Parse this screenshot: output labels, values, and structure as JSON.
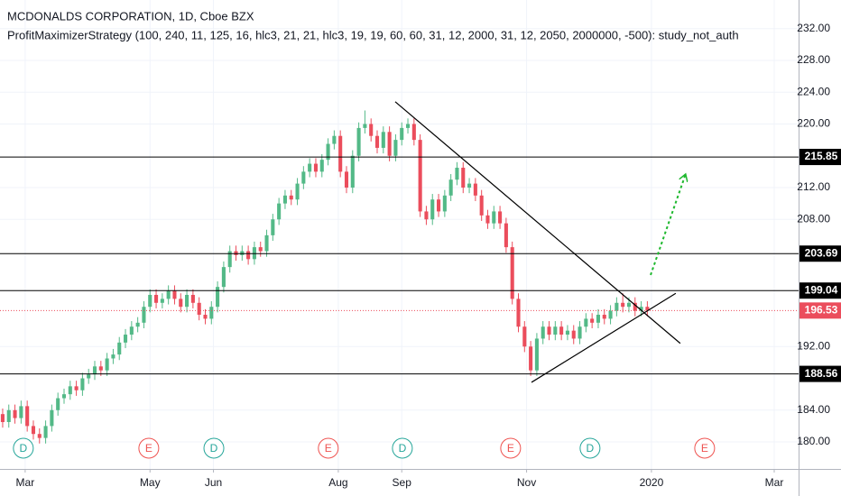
{
  "chart_data": {
    "type": "candlestick",
    "title": "MCDONALDS CORPORATION, 1D, Cboe BZX",
    "subtitle": "ProfitMaximizerStrategy (100, 240, 11, 125, 16, hlc3, 21, 21, hlc3, 19, 19, 60, 60, 31, 12, 2000, 31, 12, 2050, 2000000, -500): study_not_auth",
    "up_color": "#53b987",
    "down_color": "#eb4d5c",
    "xlim": [
      46.7,
      436.9
    ],
    "ylim": [
      176.6,
      235.6
    ],
    "grid": true,
    "xticks": [
      {
        "value": 59,
        "label": "Mar"
      },
      {
        "value": 120,
        "label": "May"
      },
      {
        "value": 151,
        "label": "Jun"
      },
      {
        "value": 212,
        "label": "Aug"
      },
      {
        "value": 243,
        "label": "Sep"
      },
      {
        "value": 304,
        "label": "Nov"
      },
      {
        "value": 365,
        "label": "2020"
      },
      {
        "value": 425,
        "label": "Mar"
      }
    ],
    "yticks": [
      {
        "value": 180,
        "label": "180.00"
      },
      {
        "value": 184,
        "label": "184.00"
      },
      {
        "value": 192,
        "label": "192.00"
      },
      {
        "value": 208,
        "label": "208.00"
      },
      {
        "value": 212,
        "label": "212.00"
      },
      {
        "value": 220,
        "label": "220.00"
      },
      {
        "value": 224,
        "label": "224.00"
      },
      {
        "value": 228,
        "label": "228.00"
      },
      {
        "value": 232,
        "label": "232.00"
      }
    ],
    "x": [
      48,
      51,
      54,
      57,
      60,
      63,
      66,
      69,
      72,
      75,
      78,
      81,
      84,
      87,
      90,
      93,
      96,
      99,
      102,
      105,
      108,
      111,
      114,
      117,
      120,
      123,
      126,
      129,
      132,
      135,
      138,
      141,
      144,
      147,
      150,
      153,
      156,
      159,
      162,
      165,
      168,
      171,
      174,
      177,
      180,
      183,
      186,
      189,
      192,
      195,
      198,
      201,
      204,
      207,
      210,
      213,
      216,
      219,
      222,
      225,
      228,
      231,
      234,
      237,
      240,
      243,
      246,
      249,
      252,
      255,
      258,
      261,
      264,
      267,
      270,
      273,
      276,
      279,
      282,
      285,
      288,
      291,
      294,
      297,
      300,
      303,
      306,
      309,
      312,
      315,
      318,
      321,
      324,
      327,
      330,
      333,
      336,
      339,
      342,
      345,
      348,
      351,
      354,
      357,
      360,
      363
    ],
    "opens": [
      183.5,
      182.5,
      184,
      183,
      184.5,
      182,
      181,
      180.5,
      182,
      184,
      185.5,
      186,
      187,
      186.5,
      188,
      188.5,
      189.5,
      189,
      190.5,
      191,
      192.5,
      193.5,
      194.5,
      195,
      197,
      198.5,
      197.5,
      198,
      199,
      198,
      197,
      198.5,
      197.5,
      196,
      195.5,
      197,
      199.5,
      202,
      204,
      203.5,
      204,
      203,
      204.5,
      204,
      206,
      208,
      210,
      211,
      210.5,
      212.5,
      214,
      215,
      214,
      215.5,
      217.5,
      218.5,
      214,
      212,
      216,
      219.5,
      220,
      218.5,
      217,
      219,
      216,
      218,
      219.5,
      220,
      218,
      209,
      208,
      210.5,
      209,
      211,
      213,
      214.5,
      212,
      212.5,
      211,
      208.5,
      207.5,
      209,
      207.5,
      204.5,
      198,
      194.5,
      192,
      189,
      193,
      194.5,
      193.5,
      194.5,
      193.5,
      194,
      193,
      194.5,
      195.5,
      195,
      196,
      195.5,
      196.5,
      197.5,
      197,
      197.5,
      196.5,
      197
    ],
    "highs": [
      184.2,
      184.7,
      184.7,
      185.2,
      185.2,
      182.7,
      181.7,
      182.7,
      184.7,
      186.2,
      186.7,
      187.7,
      187.7,
      188.7,
      189.2,
      190.2,
      190.2,
      191.2,
      191.7,
      193.2,
      194.2,
      195.2,
      195.7,
      197.7,
      199.2,
      199.2,
      198.7,
      199.7,
      199.7,
      198.7,
      199.2,
      199.2,
      198.2,
      196.7,
      197.7,
      200.2,
      202.7,
      204.7,
      204.7,
      204.7,
      204.7,
      205.2,
      205.2,
      206.7,
      208.7,
      210.7,
      211.7,
      211.7,
      213.2,
      214.7,
      215.7,
      215.7,
      216.2,
      218.2,
      219.2,
      219.2,
      214.7,
      216.7,
      220.2,
      221.7,
      220.7,
      219.2,
      219.7,
      219.7,
      218.7,
      220.2,
      220.7,
      220.7,
      218.7,
      209.7,
      211.2,
      211.2,
      211.7,
      213.7,
      215.2,
      215.2,
      213.2,
      213.2,
      211.7,
      209.2,
      209.7,
      209.7,
      208.2,
      205.2,
      198.7,
      195.2,
      192.7,
      193.7,
      195.2,
      195.2,
      195.2,
      195.2,
      194.7,
      194.7,
      195.2,
      196.2,
      196.2,
      196.7,
      196.7,
      197.2,
      198.2,
      198.7,
      198.2,
      198.2,
      197.7,
      197.7
    ],
    "lows": [
      181.8,
      181.8,
      182.3,
      182.3,
      181.3,
      180.3,
      179.8,
      179.8,
      181.3,
      183.3,
      184.8,
      185.3,
      185.8,
      185.8,
      187.3,
      187.8,
      188.3,
      188.3,
      189.8,
      190.3,
      191.8,
      192.8,
      193.8,
      194.3,
      196.3,
      196.8,
      196.8,
      197.3,
      197.3,
      196.3,
      196.3,
      196.8,
      195.3,
      194.8,
      194.8,
      196.3,
      198.8,
      201.3,
      202.8,
      202.8,
      202.3,
      202.3,
      203.3,
      203.3,
      205.3,
      207.3,
      209.3,
      209.8,
      209.8,
      211.8,
      213.3,
      213.3,
      213.3,
      214.8,
      216.8,
      213.3,
      211.3,
      211.3,
      215.3,
      218.8,
      217.8,
      216.3,
      216.3,
      215.3,
      215.3,
      217.3,
      218.8,
      217.3,
      208.3,
      207.3,
      207.3,
      208.3,
      208.3,
      210.3,
      212.3,
      211.3,
      211.3,
      210.3,
      207.8,
      206.8,
      206.8,
      206.8,
      203.8,
      197.3,
      193.8,
      191.3,
      188.3,
      188.3,
      192.3,
      192.8,
      192.8,
      192.8,
      192.8,
      192.3,
      192.3,
      193.8,
      194.3,
      194.3,
      194.8,
      194.8,
      195.8,
      196.3,
      196.3,
      195.8,
      195.8,
      195.8
    ],
    "closes": [
      182.5,
      184,
      183,
      184.5,
      182,
      181,
      180.5,
      182,
      184,
      185.5,
      186,
      187,
      186.5,
      188,
      188.5,
      189.5,
      189,
      190.5,
      191,
      192.5,
      193.5,
      194.5,
      195,
      197,
      198.5,
      197.5,
      198,
      199,
      198,
      197,
      198.5,
      197.5,
      196,
      195.5,
      197,
      199.5,
      202,
      204,
      203.5,
      204,
      203,
      204.5,
      204,
      206,
      208,
      210,
      211,
      210.5,
      212.5,
      214,
      215,
      214,
      215.5,
      217.5,
      218.5,
      214,
      212,
      216,
      219.5,
      220,
      218.5,
      217,
      219,
      216,
      218,
      219.5,
      220,
      218,
      209,
      208,
      210.5,
      209,
      211,
      213,
      214.5,
      212,
      212.5,
      211,
      208.5,
      207.5,
      209,
      207.5,
      204.5,
      198,
      194.5,
      192,
      189,
      193,
      194.5,
      193.5,
      194.5,
      193.5,
      194,
      193,
      194.5,
      195.5,
      195,
      196,
      195.5,
      196.5,
      197.5,
      197,
      197.5,
      196.5,
      197,
      196.53
    ],
    "levels": [
      215.85,
      203.69,
      199.04,
      188.56
    ],
    "trendlines": [
      {
        "x": [
          239.8,
          379.1
        ],
        "y": [
          222.8,
          192.4
        ],
        "color": "#000000"
      },
      {
        "x": [
          306.4,
          376.9
        ],
        "y": [
          187.5,
          198.7
        ],
        "color": "#000000"
      },
      {
        "x": [
          364.6,
          381.7
        ],
        "y": [
          201.0,
          213.7
        ],
        "color": "#1eb82e",
        "dashed": true,
        "arrow": true
      }
    ],
    "events": [
      {
        "x": 58.1,
        "label": "D",
        "color": "#26a69a"
      },
      {
        "x": 151.2,
        "label": "D",
        "color": "#26a69a"
      },
      {
        "x": 243.3,
        "label": "D",
        "color": "#26a69a"
      },
      {
        "x": 335.0,
        "label": "D",
        "color": "#26a69a"
      },
      {
        "x": 119.4,
        "label": "E",
        "color": "#ef5350"
      },
      {
        "x": 207.1,
        "label": "E",
        "color": "#ef5350"
      },
      {
        "x": 296.2,
        "label": "E",
        "color": "#ef5350"
      },
      {
        "x": 391.0,
        "label": "E",
        "color": "#ef5350"
      }
    ]
  }
}
